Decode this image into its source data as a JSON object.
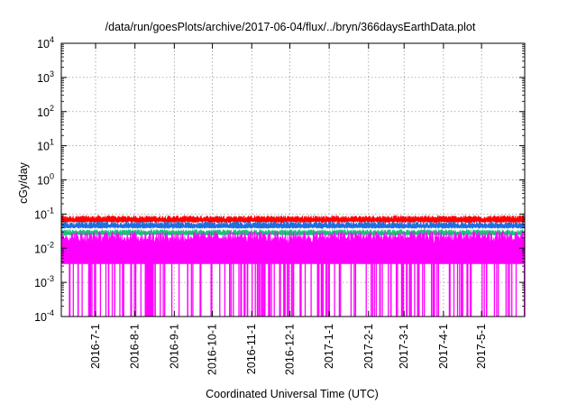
{
  "chart_data": {
    "type": "line",
    "title": "/data/run/goesPlots/archive/2017-06-04/flux/../bryn/366daysEarthData.plot",
    "xlabel": "Coordinated Universal Time (UTC)",
    "ylabel": "cGy/day",
    "yscale": "log",
    "ylim": [
      0.0001,
      10000
    ],
    "yticks": [
      {
        "value": 0.0001,
        "base": "10",
        "exp": "-4"
      },
      {
        "value": 0.001,
        "base": "10",
        "exp": "-3"
      },
      {
        "value": 0.01,
        "base": "10",
        "exp": "-2"
      },
      {
        "value": 0.1,
        "base": "10",
        "exp": "-1"
      },
      {
        "value": 1,
        "base": "10",
        "exp": "0"
      },
      {
        "value": 10,
        "base": "10",
        "exp": "1"
      },
      {
        "value": 100,
        "base": "10",
        "exp": "2"
      },
      {
        "value": 1000,
        "base": "10",
        "exp": "3"
      },
      {
        "value": 10000,
        "base": "10",
        "exp": "4"
      }
    ],
    "xlim": [
      "2016-06-04",
      "2017-06-04"
    ],
    "xticks": [
      "2016-7-1",
      "2016-8-1",
      "2016-9-1",
      "2016-10-1",
      "2016-11-1",
      "2016-12-1",
      "2017-1-1",
      "2017-2-1",
      "2017-3-1",
      "2017-4-1",
      "2017-5-1"
    ],
    "grid": true,
    "series": [
      {
        "color": "#ff0000",
        "approx_level": 0.07,
        "min": 0.05,
        "max": 0.09
      },
      {
        "color": "#1e6fe0",
        "approx_level": 0.045,
        "min": 0.035,
        "max": 0.06
      },
      {
        "color": "#1fbf7a",
        "approx_level": 0.028,
        "min": 0.022,
        "max": 0.035
      },
      {
        "color": "#ff00ff",
        "approx_level": 0.02,
        "min": 0.0001,
        "max": 0.035,
        "floor": 0.0035
      }
    ]
  }
}
